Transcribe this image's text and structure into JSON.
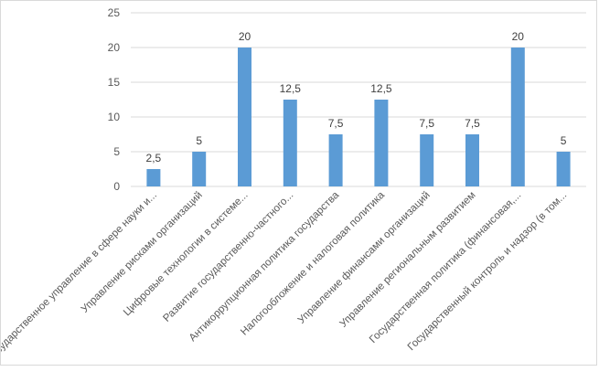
{
  "chart_data": {
    "type": "bar",
    "categories": [
      "Государственное управление в сфере науки и...",
      "Управление рисками организаций",
      "Цифровые технологии в системе...",
      "Развитие государственно-частного...",
      "Антикоррупционная политика государства",
      "Налогообложение и налоговая политика",
      "Управление финансами организаций",
      "Управление региональным развитием",
      "Государственная политика (финансовая,...",
      "Государственный контроль и надзор (в том..."
    ],
    "values": [
      2.5,
      5,
      20,
      12.5,
      7.5,
      12.5,
      7.5,
      7.5,
      20,
      5
    ],
    "data_labels": [
      "2,5",
      "5",
      "20",
      "12,5",
      "7,5",
      "12,5",
      "7,5",
      "7,5",
      "20",
      "5"
    ],
    "y_ticks": [
      "0",
      "5",
      "10",
      "15",
      "20",
      "25"
    ],
    "ylim": [
      0,
      25
    ],
    "grid": true,
    "bar_color": "#5b9bd5",
    "title": "",
    "xlabel": "",
    "ylabel": ""
  }
}
